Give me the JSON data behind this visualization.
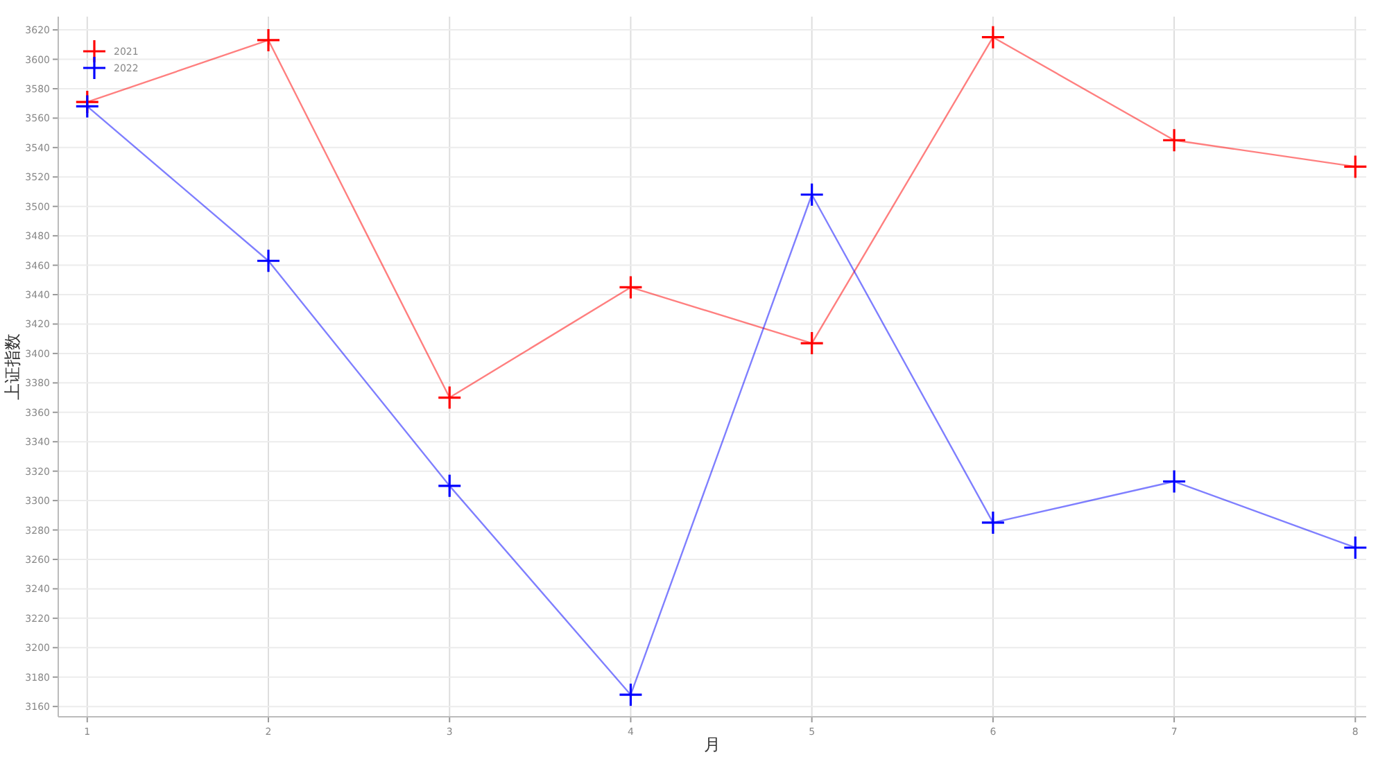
{
  "chart_data": {
    "type": "line",
    "xlabel": "月",
    "ylabel": "上证指数",
    "x": [
      1,
      2,
      3,
      4,
      5,
      6,
      7,
      8
    ],
    "series": [
      {
        "name": "2021",
        "color": "#ff0000",
        "values": [
          3571,
          3613,
          3370,
          3445,
          3407,
          3615,
          3545,
          3527
        ]
      },
      {
        "name": "2022",
        "color": "#0000ff",
        "values": [
          3568,
          3463,
          3310,
          3168,
          3508,
          3285,
          3313,
          3268
        ]
      }
    ],
    "xlim": [
      0.84,
      8.06
    ],
    "xticks": [
      1,
      2,
      3,
      4,
      5,
      6,
      7,
      8
    ],
    "ylim": [
      3153,
      3629
    ],
    "yticks": [
      3160,
      3180,
      3200,
      3220,
      3240,
      3260,
      3280,
      3300,
      3320,
      3340,
      3360,
      3380,
      3400,
      3420,
      3440,
      3460,
      3480,
      3500,
      3520,
      3540,
      3560,
      3580,
      3600,
      3620
    ],
    "grid": true,
    "legend": "top left",
    "marker": "cross",
    "line_style": "solid"
  }
}
